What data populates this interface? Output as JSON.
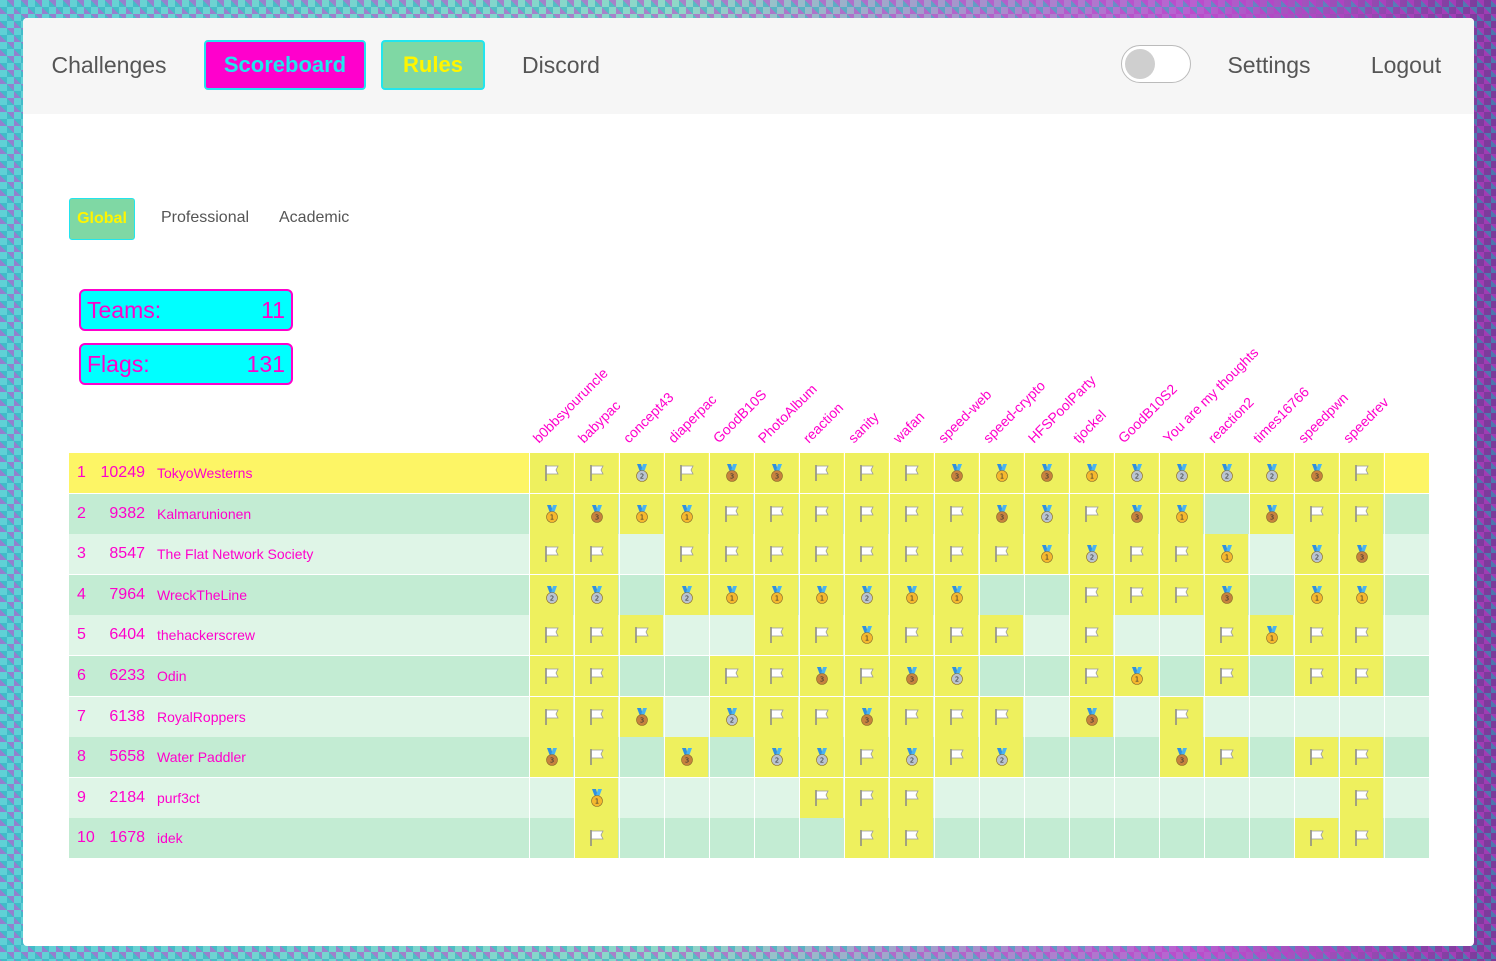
{
  "nav": {
    "challenges": "Challenges",
    "scoreboard": "Scoreboard",
    "rules": "Rules",
    "discord": "Discord",
    "settings": "Settings",
    "logout": "Logout"
  },
  "tabs": [
    "Global",
    "Professional",
    "Academic"
  ],
  "stats": {
    "teams_label": "Teams:",
    "teams_value": "11",
    "flags_label": "Flags:",
    "flags_value": "131"
  },
  "challenges": [
    "b0bbsyouruncle",
    "babypac",
    "concept43",
    "diaperpac",
    "GoodB10S",
    "PhotoAlbum",
    "reaction",
    "sanity",
    "wafan",
    "speed-web",
    "speed-crypto",
    "HFSPoolParty",
    "tjockel",
    "GoodB10S2",
    "You are my thoughts",
    "reaction2",
    "times16766",
    "speedpwn",
    "speedrev"
  ],
  "colors": {
    "magenta": "#ff00cc",
    "cyan": "#00ffff",
    "green": "#7fd8a4",
    "yellow": "#fff500",
    "row_yellow": "#fdf565",
    "row_dark": "#c3ecd3",
    "row_light": "#dff5e7",
    "cell_solved": "#eef05e"
  },
  "teams": [
    {
      "rank": "1",
      "points": "10249",
      "name": "TokyoWesterns",
      "solves": [
        "F",
        "F",
        "2",
        "F",
        "3",
        "3",
        "F",
        "F",
        "F",
        "3",
        "1",
        "3",
        "1",
        "2",
        "2",
        "2",
        "2",
        "3",
        "F"
      ]
    },
    {
      "rank": "2",
      "points": "9382",
      "name": "Kalmarunionen",
      "solves": [
        "1",
        "3",
        "1",
        "1",
        "F",
        "F",
        "F",
        "F",
        "F",
        "F",
        "3",
        "2",
        "F",
        "3",
        "1",
        "",
        "3",
        "F",
        "F"
      ]
    },
    {
      "rank": "3",
      "points": "8547",
      "name": "The Flat Network Society",
      "solves": [
        "F",
        "F",
        "",
        "F",
        "F",
        "F",
        "F",
        "F",
        "F",
        "F",
        "F",
        "1",
        "2",
        "F",
        "F",
        "1",
        "",
        "2",
        "3"
      ]
    },
    {
      "rank": "4",
      "points": "7964",
      "name": "WreckTheLine",
      "solves": [
        "2",
        "2",
        "",
        "2",
        "1",
        "1",
        "1",
        "2",
        "1",
        "1",
        "",
        "",
        "F",
        "F",
        "F",
        "3",
        "",
        "1",
        "1"
      ]
    },
    {
      "rank": "5",
      "points": "6404",
      "name": "thehackerscrew",
      "solves": [
        "F",
        "F",
        "F",
        "",
        "",
        "F",
        "F",
        "1",
        "F",
        "F",
        "F",
        "",
        "F",
        "",
        "",
        "F",
        "1",
        "F",
        "F"
      ]
    },
    {
      "rank": "6",
      "points": "6233",
      "name": "Odin",
      "solves": [
        "F",
        "F",
        "",
        "",
        "F",
        "F",
        "3",
        "F",
        "3",
        "2",
        "",
        "",
        "F",
        "1",
        "",
        "F",
        "",
        "F",
        "F"
      ]
    },
    {
      "rank": "7",
      "points": "6138",
      "name": "RoyalRoppers",
      "solves": [
        "F",
        "F",
        "3",
        "",
        "2",
        "F",
        "F",
        "3",
        "F",
        "F",
        "F",
        "",
        "3",
        "",
        "F",
        "",
        "",
        "",
        ""
      ]
    },
    {
      "rank": "8",
      "points": "5658",
      "name": "Water Paddler",
      "solves": [
        "3",
        "F",
        "",
        "3",
        "",
        "2",
        "2",
        "F",
        "2",
        "F",
        "2",
        "",
        "",
        "",
        "3",
        "F",
        "",
        "F",
        "F"
      ]
    },
    {
      "rank": "9",
      "points": "2184",
      "name": "purf3ct",
      "solves": [
        "",
        "1",
        "",
        "",
        "",
        "",
        "F",
        "F",
        "F",
        "",
        "",
        "",
        "",
        "",
        "",
        "",
        "",
        "",
        "F"
      ]
    },
    {
      "rank": "10",
      "points": "1678",
      "name": "idek",
      "solves": [
        "",
        "F",
        "",
        "",
        "",
        "",
        "",
        "F",
        "F",
        "",
        "",
        "",
        "",
        "",
        "",
        "",
        "",
        "F",
        "F"
      ]
    }
  ]
}
